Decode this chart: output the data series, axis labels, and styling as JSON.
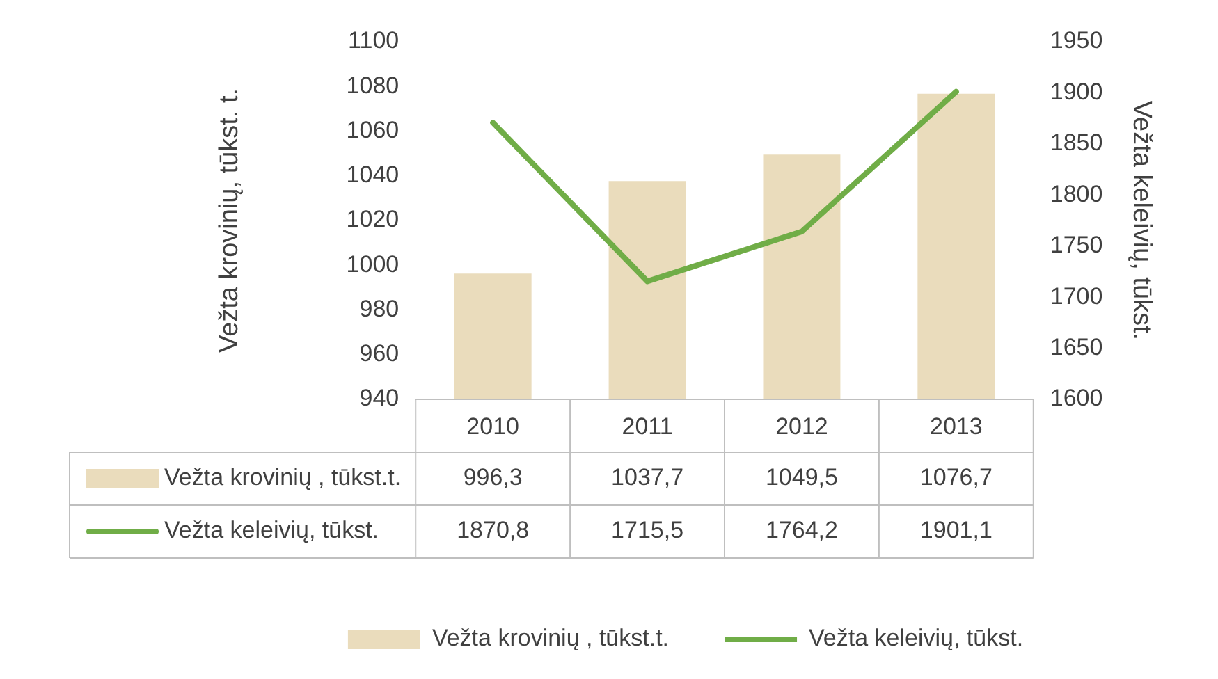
{
  "chart_data": {
    "type": "bar",
    "categories": [
      "2010",
      "2011",
      "2012",
      "2013"
    ],
    "series": [
      {
        "name": "Vežta krovinių , tūkst.t.",
        "color": "#eadcbc",
        "values": [
          996.3,
          1037.7,
          1049.5,
          1076.7
        ],
        "value_labels": [
          "996,3",
          "1037,7",
          "1049,5",
          "1076,7"
        ]
      },
      {
        "name": "Vežta keleivių, tūkst.",
        "type": "line",
        "axis": "y2",
        "color": "#70ad47",
        "values": [
          1870.8,
          1715.5,
          1764.2,
          1901.1
        ],
        "value_labels": [
          "1870,8",
          "1715,5",
          "1764,2",
          "1901,1"
        ]
      }
    ],
    "ylabel": "Vežta krovinių, tūkst. t.",
    "y2label": "Vežta keleivių, tūkst.",
    "ylim": [
      940,
      1100
    ],
    "yticks": [
      940,
      960,
      980,
      1000,
      1020,
      1040,
      1060,
      1080,
      1100
    ],
    "y2lim": [
      1600,
      1950
    ],
    "y2ticks": [
      1600,
      1650,
      1700,
      1750,
      1800,
      1850,
      1900,
      1950
    ],
    "grid": false,
    "legend": "bottom",
    "marker": "none",
    "line_style": "solid"
  }
}
